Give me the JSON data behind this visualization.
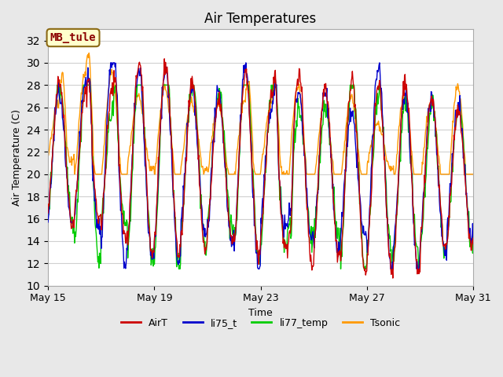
{
  "title": "Air Temperatures",
  "xlabel": "Time",
  "ylabel": "Air Temperature (C)",
  "ylim": [
    10,
    33
  ],
  "yticks": [
    10,
    12,
    14,
    16,
    18,
    20,
    22,
    24,
    26,
    28,
    30,
    32
  ],
  "fig_bg_color": "#e8e8e8",
  "plot_bg_color": "#ffffff",
  "grid_color": "#d0d0d0",
  "annotation_text": "MB_tule",
  "annotation_bg": "#ffffcc",
  "annotation_border": "#8B6914",
  "annotation_text_color": "#8B0000",
  "colors": {
    "AirT": "#cc0000",
    "li75_t": "#0000cc",
    "li77_temp": "#00cc00",
    "Tsonic": "#ff9900"
  },
  "series_names": [
    "AirT",
    "li75_t",
    "li77_temp",
    "Tsonic"
  ],
  "x_tick_labels": [
    "May 15",
    "May 19",
    "May 23",
    "May 27",
    "May 31"
  ],
  "x_tick_positions": [
    0,
    4,
    8,
    12,
    16
  ],
  "num_days": 17,
  "seed": 42
}
